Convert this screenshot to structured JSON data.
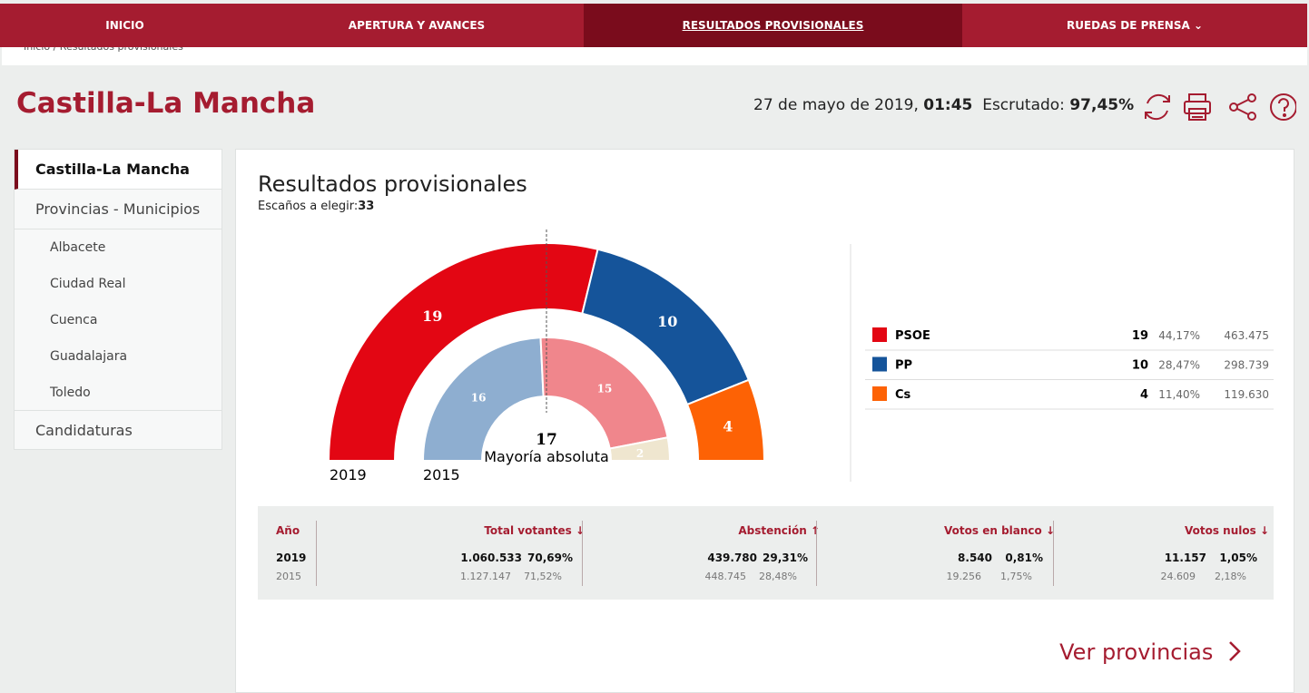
{
  "nav": [
    "INICIO",
    "APERTURA Y AVANCES",
    "RESULTADOS PROVISIONALES",
    "RUEDAS DE PRENSA"
  ],
  "breadcrumb": "Inicio / Resultados provisionales",
  "header": {
    "title": "Castilla-La Mancha",
    "date": "27 de mayo de 2019,",
    "time": "01:45",
    "scrutiny_label": "Escrutado:",
    "scrutiny": "97,45%"
  },
  "sidebar": {
    "active": "Castilla-La Mancha",
    "section": "Provincias - Municipios",
    "provinces": [
      "Albacete",
      "Ciudad Real",
      "Cuenca",
      "Guadalajara",
      "Toledo"
    ],
    "last": "Candidaturas"
  },
  "results": {
    "title": "Resultados provisionales",
    "seats_label": "Escaños a elegir:",
    "seats_total": 33,
    "majority": 17,
    "majority_label": "Mayoría absoluta",
    "years": [
      "2019",
      "2015"
    ],
    "outer": [
      {
        "name": "PSOE",
        "color": "#e30613",
        "seats": 19,
        "pct": "44,17%",
        "votes": "463.475"
      },
      {
        "name": "PP",
        "color": "#15549a",
        "seats": 10,
        "pct": "28,47%",
        "votes": "298.739"
      },
      {
        "name": "Cs",
        "color": "#fd6205",
        "seats": 4,
        "pct": "11,40%",
        "votes": "119.630"
      }
    ],
    "inner": [
      {
        "color": "#8eaed0",
        "seats": 16
      },
      {
        "color": "#f0868c",
        "seats": 15
      },
      {
        "color": "#efe6cf",
        "seats": 2
      }
    ]
  },
  "stats": {
    "headers": [
      "Año",
      "Total votantes ↓",
      "Abstención ↑",
      "Votos en blanco ↓",
      "Votos nulos ↓"
    ],
    "rows": [
      [
        "2019",
        "1.060.533",
        "70,69%",
        "439.780",
        "29,31%",
        "8.540",
        "0,81%",
        "11.157",
        "1,05%"
      ],
      [
        "2015",
        "1.127.147",
        "71,52%",
        "448.745",
        "28,48%",
        "19.256",
        "1,75%",
        "24.609",
        "2,18%"
      ]
    ]
  },
  "link": "Ver provincias"
}
